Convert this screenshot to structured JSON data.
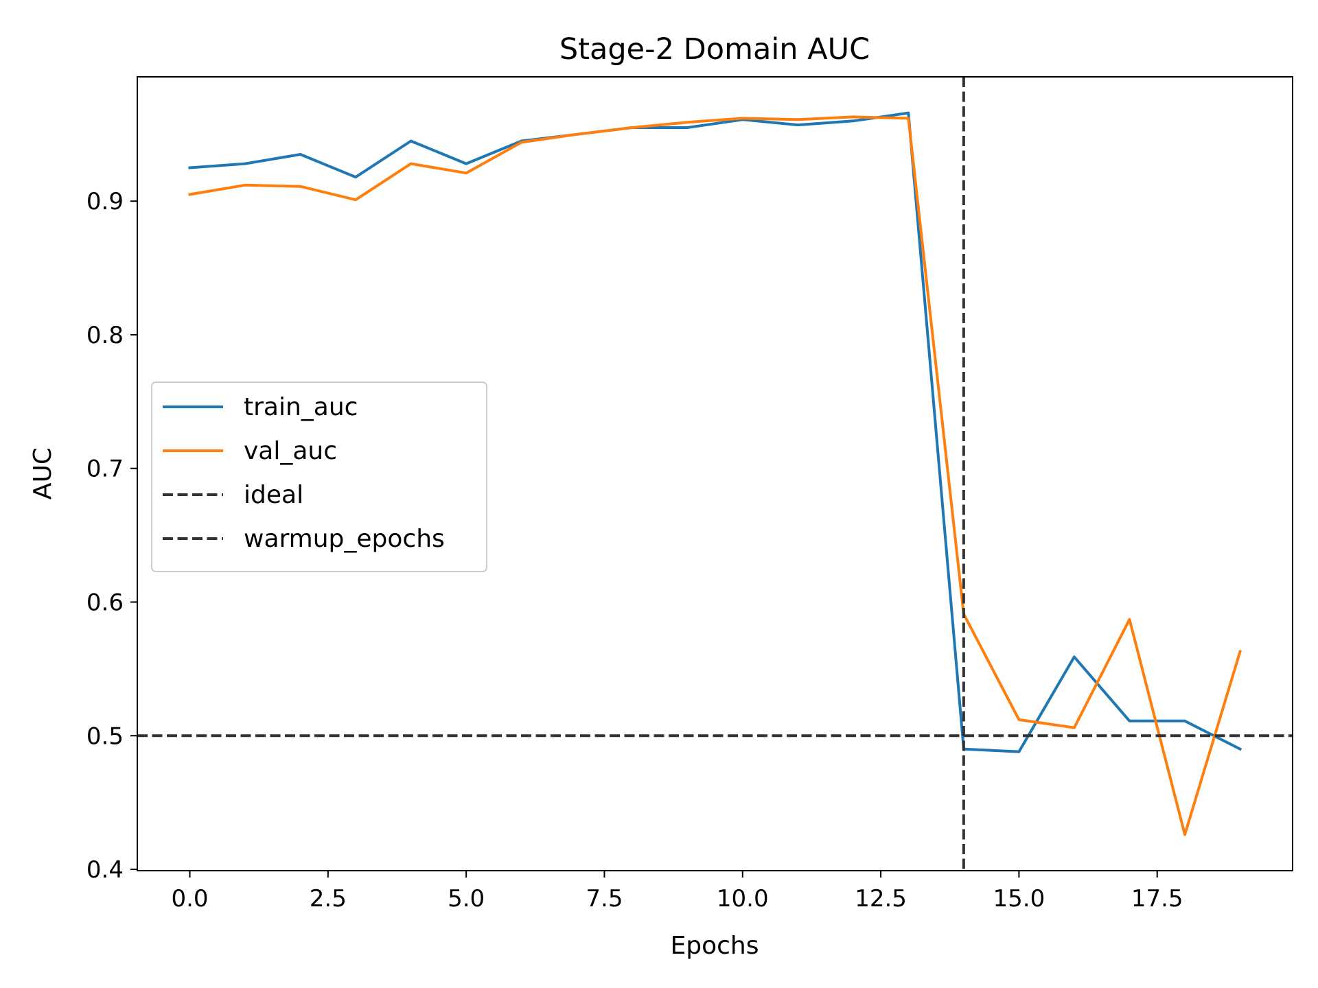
{
  "chart_data": {
    "type": "line",
    "title": "Stage-2 Domain AUC",
    "xlabel": "Epochs",
    "ylabel": "AUC",
    "xlim": [
      -0.95,
      19.95
    ],
    "ylim": [
      0.399,
      0.993
    ],
    "xticks": [
      0.0,
      2.5,
      5.0,
      7.5,
      10.0,
      12.5,
      15.0,
      17.5
    ],
    "xtick_labels": [
      "0.0",
      "2.5",
      "5.0",
      "7.5",
      "10.0",
      "12.5",
      "15.0",
      "17.5"
    ],
    "yticks": [
      0.4,
      0.5,
      0.6,
      0.7,
      0.8,
      0.9
    ],
    "ytick_labels": [
      "0.4",
      "0.5",
      "0.6",
      "0.7",
      "0.8",
      "0.9"
    ],
    "grid": false,
    "legend_position": "center-left",
    "x": [
      0,
      1,
      2,
      3,
      4,
      5,
      6,
      7,
      8,
      9,
      10,
      11,
      12,
      13,
      14,
      15,
      16,
      17,
      18,
      19
    ],
    "series": [
      {
        "name": "train_auc",
        "color": "#1f77b4",
        "style": "solid",
        "values": [
          0.925,
          0.928,
          0.935,
          0.918,
          0.945,
          0.928,
          0.945,
          0.95,
          0.955,
          0.955,
          0.961,
          0.957,
          0.96,
          0.966,
          0.49,
          0.488,
          0.559,
          0.511,
          0.511,
          0.49
        ]
      },
      {
        "name": "val_auc",
        "color": "#ff7f0e",
        "style": "solid",
        "values": [
          0.905,
          0.912,
          0.911,
          0.901,
          0.928,
          0.921,
          0.944,
          0.95,
          0.955,
          0.959,
          0.962,
          0.961,
          0.963,
          0.962,
          0.591,
          0.512,
          0.506,
          0.587,
          0.426,
          0.563
        ]
      }
    ],
    "reference_lines": [
      {
        "name": "ideal",
        "orientation": "horizontal",
        "value": 0.5,
        "color": "#333333",
        "style": "dashed"
      },
      {
        "name": "warmup_epochs",
        "orientation": "vertical",
        "value": 14,
        "color": "#333333",
        "style": "dashed"
      }
    ]
  }
}
